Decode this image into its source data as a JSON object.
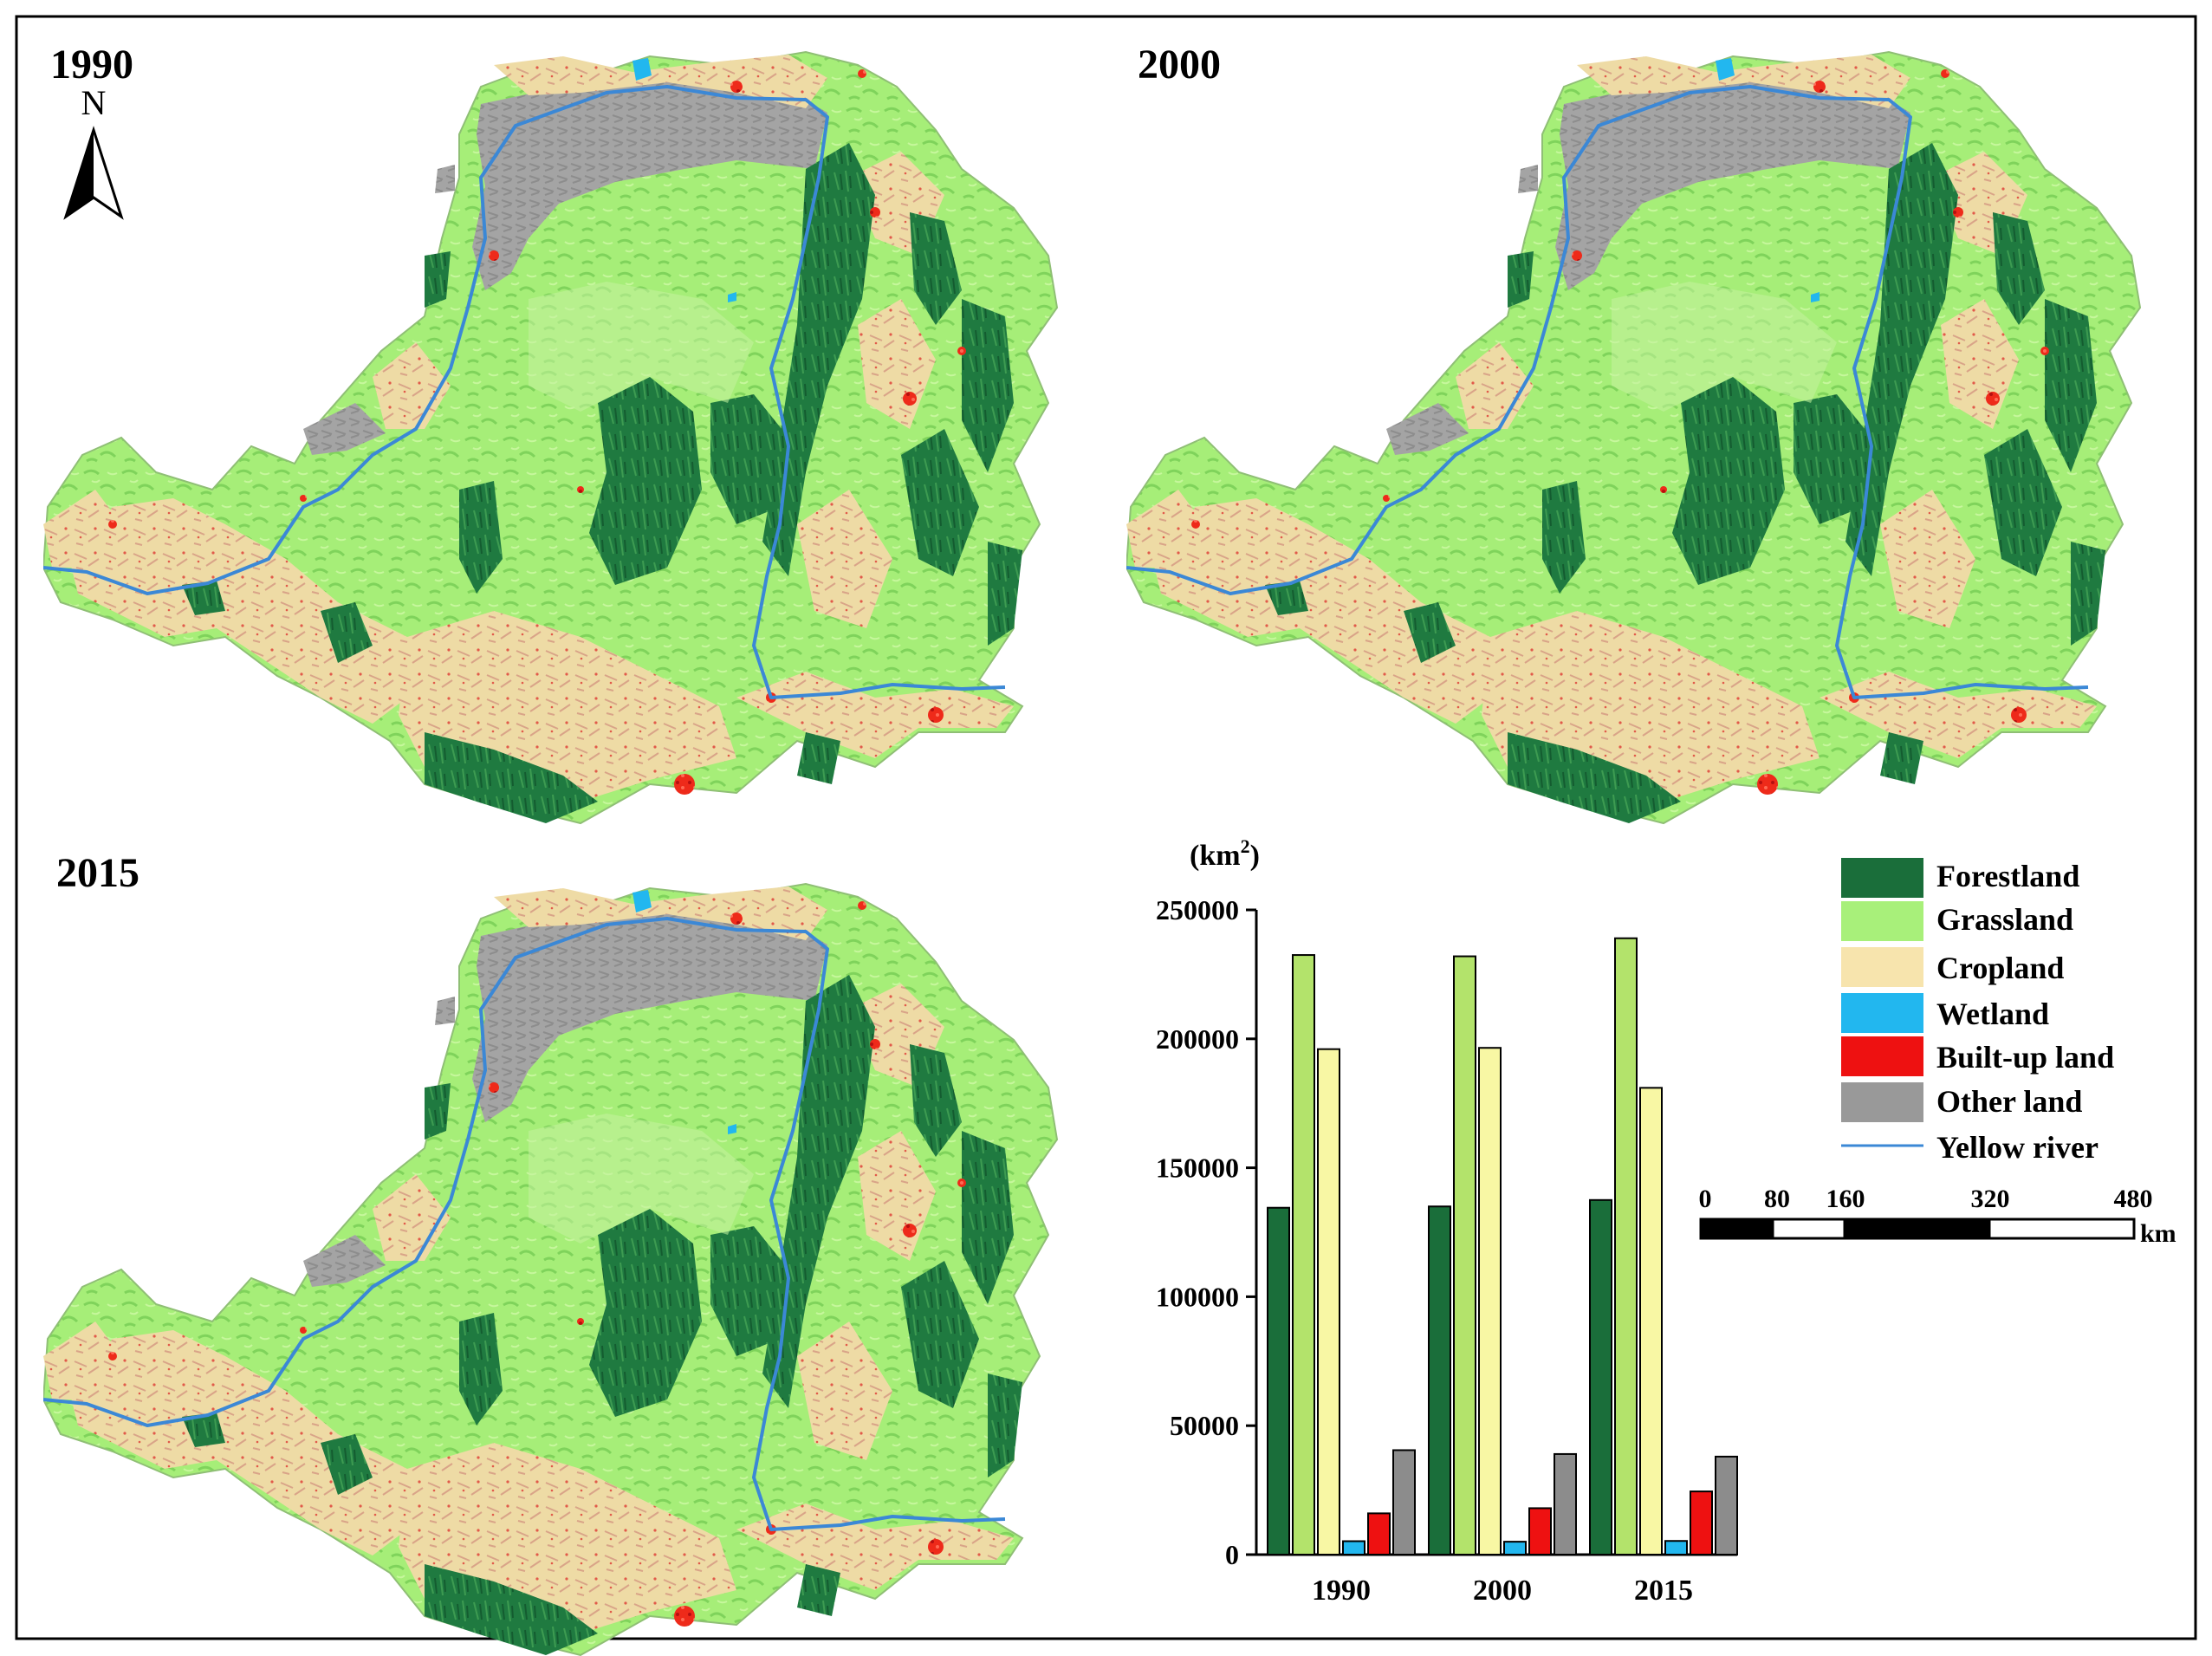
{
  "panels": [
    {
      "year": "1990"
    },
    {
      "year": "2000"
    },
    {
      "year": "2015"
    }
  ],
  "north_arrow": {
    "label": "N"
  },
  "legend": {
    "items": [
      {
        "label": "Forestland",
        "color": "#1a6e3a"
      },
      {
        "label": "Grassland",
        "color": "#a8f07a"
      },
      {
        "label": "Cropland",
        "color": "#f7e4ad"
      },
      {
        "label": "Wetland",
        "color": "#22b7ef"
      },
      {
        "label": "Built-up land",
        "color": "#ee1111"
      },
      {
        "label": "Other land",
        "color": "#999999"
      }
    ],
    "river": {
      "label": "Yellow river",
      "color": "#3b88d6"
    }
  },
  "scale_bar": {
    "ticks": [
      "0",
      "80",
      "160",
      "320",
      "480"
    ],
    "tick_values": [
      0,
      80,
      160,
      320,
      480
    ],
    "unit": "km"
  },
  "chart_data": {
    "type": "bar",
    "unit_label": "(km",
    "unit_sup": "2",
    "unit_close": ")",
    "categories": [
      "1990",
      "2000",
      "2015"
    ],
    "ylim": [
      0,
      250000
    ],
    "yticks": [
      "0",
      "50000",
      "100000",
      "150000",
      "200000",
      "250000"
    ],
    "ytick_values": [
      0,
      50000,
      100000,
      150000,
      200000,
      250000
    ],
    "series": [
      {
        "name": "Forestland",
        "color": "#1a6e3a",
        "values": [
          134500,
          135000,
          137500
        ]
      },
      {
        "name": "Grassland",
        "color": "#b3e36b",
        "values": [
          232500,
          232000,
          239000
        ]
      },
      {
        "name": "Cropland",
        "color": "#f8f7a4",
        "values": [
          196000,
          196500,
          181000
        ]
      },
      {
        "name": "Wetland",
        "color": "#22b7ef",
        "values": [
          5200,
          5000,
          5300
        ]
      },
      {
        "name": "Built-up land",
        "color": "#ee1111",
        "values": [
          16000,
          18000,
          24500
        ]
      },
      {
        "name": "Other land",
        "color": "#8c8c8c",
        "values": [
          40500,
          39000,
          38000
        ]
      }
    ]
  }
}
